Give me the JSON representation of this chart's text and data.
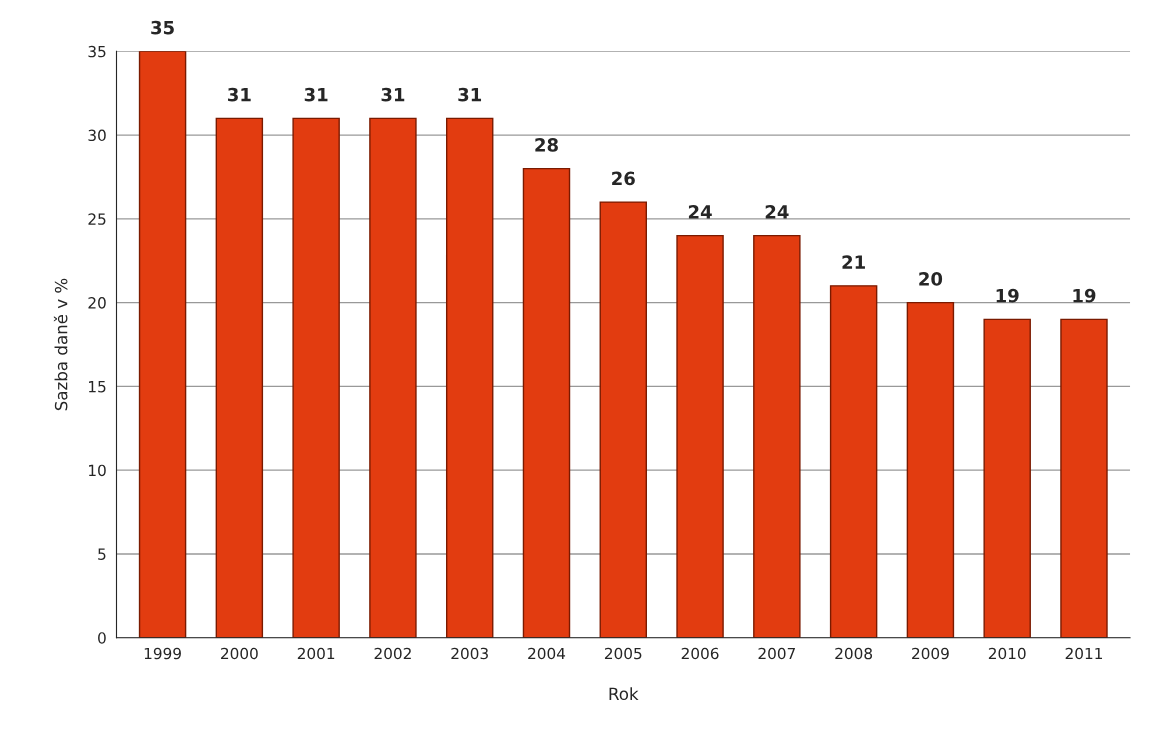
{
  "chart_data": {
    "type": "bar",
    "xlabel": "Rok",
    "ylabel": "Sazba daně v %",
    "categories": [
      "1999",
      "2000",
      "2001",
      "2002",
      "2003",
      "2004",
      "2005",
      "2006",
      "2007",
      "2008",
      "2009",
      "2010",
      "2011"
    ],
    "values": [
      35,
      31,
      31,
      31,
      31,
      28,
      26,
      24,
      24,
      21,
      20,
      19,
      19
    ],
    "color": "#e23c10",
    "ylim": [
      0,
      35
    ],
    "yticks": [
      0,
      5,
      10,
      15,
      20,
      25,
      30,
      35
    ],
    "grid": "y",
    "data_labels": true
  }
}
